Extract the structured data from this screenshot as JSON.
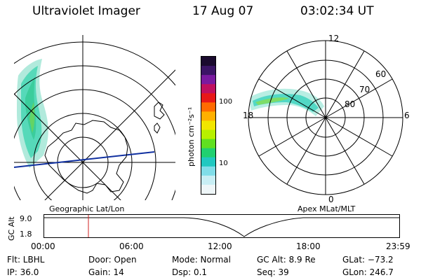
{
  "header": {
    "title": "Ultraviolet Imager",
    "date": "17 Aug 07",
    "time": "03:02:34 UT"
  },
  "geo_panel": {
    "caption": "Geographic Lat/Lon"
  },
  "colorbar": {
    "title": "photon cm⁻²s⁻¹",
    "ticks": [
      "100",
      "10"
    ],
    "colors": [
      "#1a0a2e",
      "#3b1466",
      "#7a1aa0",
      "#c01060",
      "#e81818",
      "#ff6a00",
      "#ffb000",
      "#f2e600",
      "#b8f000",
      "#60e020",
      "#20d070",
      "#20c8c0",
      "#80dde8",
      "#c8eef4",
      "#eef6f8"
    ]
  },
  "polar_panel": {
    "caption": "Apex MLat/MLT",
    "mlt_labels": [
      "12",
      "18",
      "6",
      "0"
    ],
    "lat_labels": [
      "60",
      "70",
      "80"
    ]
  },
  "altitude_strip": {
    "axis_label": "GC Alt",
    "y_ticks": [
      "9.0",
      "1.8"
    ],
    "x_ticks": [
      "00:00",
      "06:00",
      "12:00",
      "18:00",
      "23:59"
    ],
    "current_marker_fraction": 0.126
  },
  "info": {
    "row1": {
      "filter": "Flt: LBHL",
      "door": "Door: Open",
      "mode": "Mode: Normal",
      "gcalt": "GC Alt: 8.9 Re",
      "glat": "GLat: −73.2"
    },
    "row2": {
      "ip": "IP: 36.0",
      "gain": "Gain: 14",
      "dsp": "Dsp:    0.1",
      "seq": "Seq: 39",
      "glon": "GLon: 246.7"
    }
  }
}
